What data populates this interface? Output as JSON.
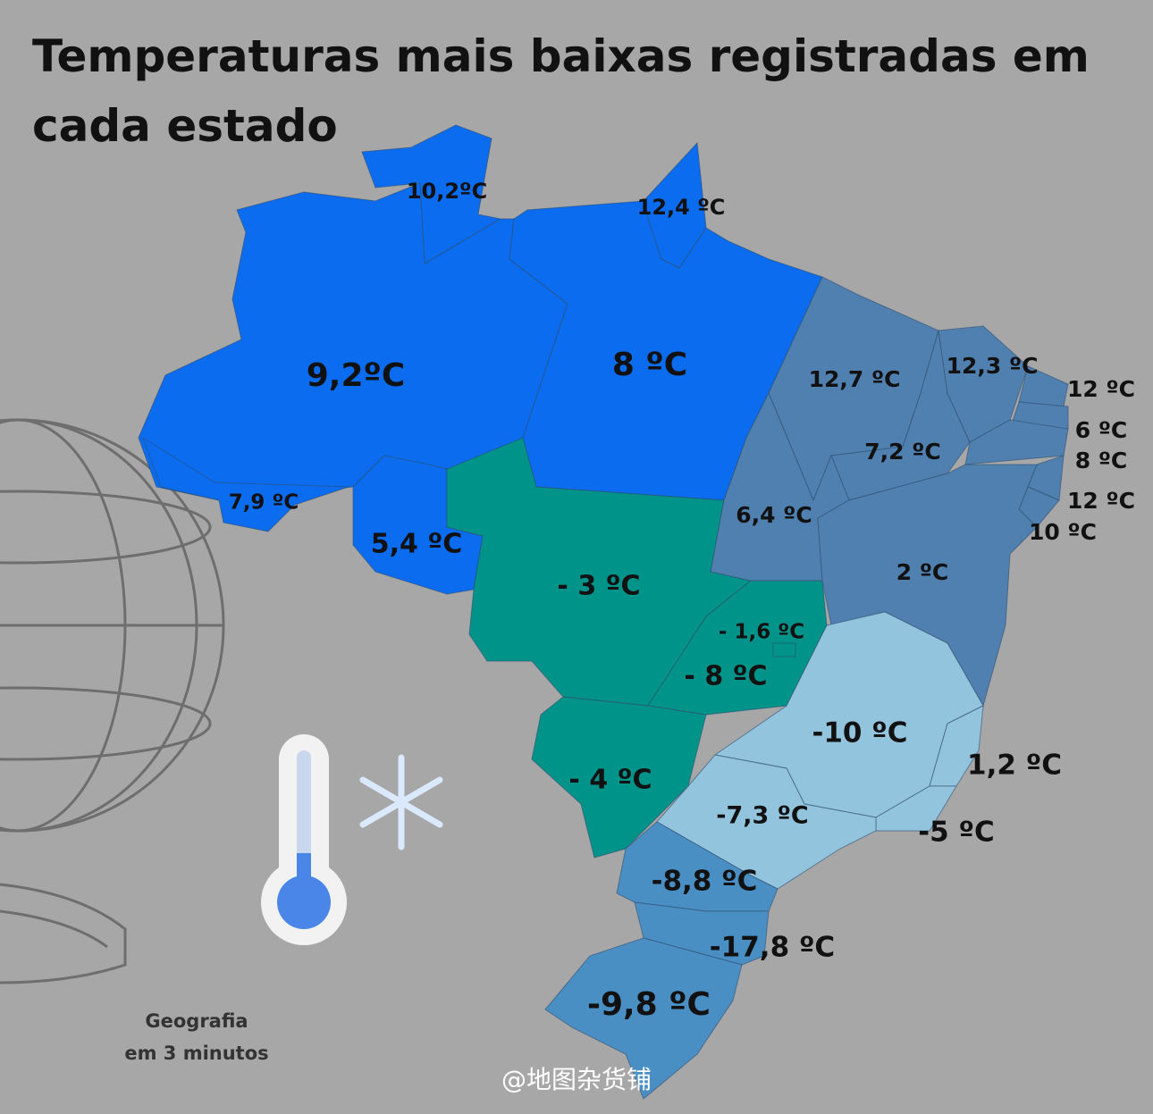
{
  "title_lines": [
    "Temperaturas mais baixas registradas em",
    "cada estado"
  ],
  "states": [
    {
      "label": "10,2ºC"
    },
    {
      "label": "12,4 ºC"
    },
    {
      "label": "9,2ºC"
    },
    {
      "label": "8 ºC"
    },
    {
      "label": "7,9 ºC"
    },
    {
      "label": "5,4 ºC"
    },
    {
      "label": "- 3 ºC"
    },
    {
      "label": "- 8 ºC"
    },
    {
      "label": "- 1,6 ºC"
    },
    {
      "label": "- 4 ºC"
    },
    {
      "label": "12,7 ºC"
    },
    {
      "label": "7,2 ºC"
    },
    {
      "label": "12,3 ºC"
    },
    {
      "label": "12 ºC"
    },
    {
      "label": "6 ºC"
    },
    {
      "label": "8 ºC"
    },
    {
      "label": "12 ºC"
    },
    {
      "label": "10 ºC"
    },
    {
      "label": "6,4 ºC"
    },
    {
      "label": "2 ºC"
    },
    {
      "label": "-10 ºC"
    },
    {
      "label": "1,2 ºC"
    },
    {
      "label": "-5 ºC"
    },
    {
      "label": "-7,3 ºC"
    },
    {
      "label": "-8,8 ºC"
    },
    {
      "label": "-17,8 ºC"
    },
    {
      "label": "-9,8 ºC"
    }
  ],
  "credit_lines": [
    "Geografia",
    "em 3 minutos"
  ],
  "watermark": "@地图杂货铺"
}
